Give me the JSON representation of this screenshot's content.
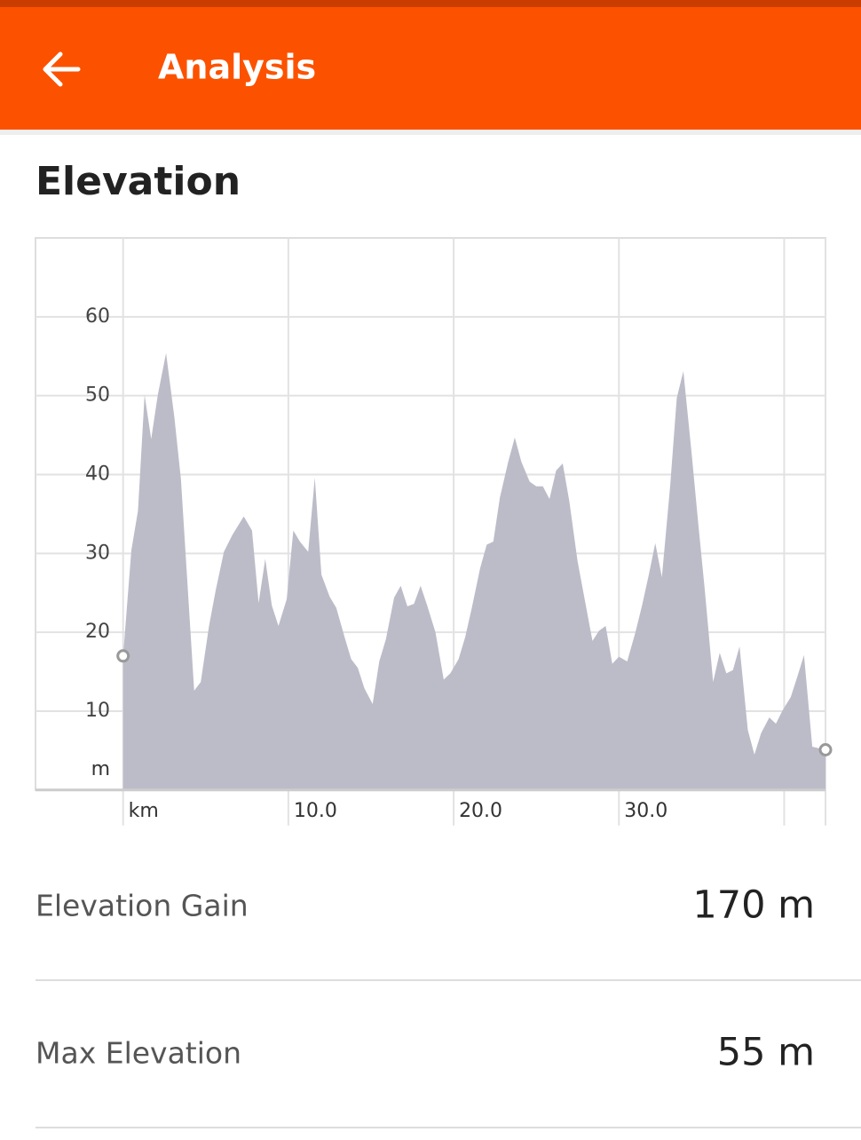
{
  "header": {
    "title": "Analysis"
  },
  "section": {
    "title": "Elevation"
  },
  "chart_data": {
    "type": "area",
    "color": "#bcbcc9",
    "grid": true,
    "x_unit_label": "km",
    "y_unit_label": "m",
    "x": [
      0,
      0.5,
      0.9,
      1.3,
      1.7,
      2.1,
      2.6,
      3.1,
      3.5,
      4.3,
      4.7,
      5.2,
      5.6,
      6.1,
      6.6,
      7.3,
      7.8,
      8.2,
      8.6,
      9.0,
      9.4,
      9.9,
      10.3,
      10.7,
      11.2,
      11.6,
      12.0,
      12.5,
      12.9,
      13.4,
      13.8,
      14.2,
      14.6,
      15.1,
      15.5,
      15.9,
      16.4,
      16.8,
      17.2,
      17.6,
      18.0,
      18.4,
      18.9,
      19.4,
      19.8,
      20.3,
      20.7,
      21.1,
      21.6,
      22.0,
      22.4,
      22.8,
      23.3,
      23.7,
      24.1,
      24.6,
      25.0,
      25.4,
      25.8,
      26.2,
      26.6,
      27.0,
      27.5,
      27.9,
      28.4,
      28.8,
      29.2,
      29.6,
      30.0,
      30.5,
      31.0,
      31.4,
      31.8,
      32.2,
      32.6,
      33.1,
      33.5,
      33.9,
      34.4,
      34.8,
      35.2,
      35.7,
      36.1,
      36.5,
      36.9,
      37.3,
      37.8,
      38.2,
      38.6,
      39.1,
      39.5,
      39.9,
      40.4,
      40.8,
      41.2,
      41.7,
      42.5
    ],
    "values": [
      17,
      30.4,
      35.4,
      50.1,
      44.5,
      50.1,
      55.4,
      47.3,
      39.4,
      12.6,
      13.7,
      20.8,
      25.3,
      30.2,
      32.3,
      34.7,
      32.9,
      23.7,
      29.3,
      23.4,
      20.8,
      24.2,
      32.9,
      31.5,
      30.2,
      39.6,
      27.3,
      24.5,
      23.1,
      19.4,
      16.6,
      15.5,
      12.9,
      10.9,
      16.3,
      19.1,
      24.4,
      25.9,
      23.3,
      23.6,
      25.9,
      23.4,
      20.0,
      14.0,
      14.8,
      16.6,
      19.4,
      23.1,
      28.1,
      31.1,
      31.5,
      37.1,
      41.6,
      44.7,
      41.6,
      39.1,
      38.5,
      38.5,
      36.9,
      40.5,
      41.4,
      36.6,
      29.0,
      24.5,
      18.9,
      20.2,
      20.8,
      16.0,
      16.9,
      16.3,
      20.0,
      23.4,
      27.2,
      31.3,
      27.0,
      38.5,
      49.7,
      53.1,
      42.7,
      33.8,
      25.3,
      13.7,
      17.4,
      14.8,
      15.2,
      18.2,
      7.6,
      4.5,
      7.2,
      9.2,
      8.4,
      10.1,
      11.8,
      14.4,
      17.1,
      5.5,
      5.1
    ],
    "xlim": [
      -5.3,
      42.5
    ],
    "ylim": [
      0,
      70
    ],
    "xticks": [
      {
        "value": 10,
        "label": "10.0"
      },
      {
        "value": 20,
        "label": "20.0"
      },
      {
        "value": 30,
        "label": "30.0"
      }
    ],
    "xgrid": [
      0,
      10,
      20,
      30,
      40,
      42.5
    ],
    "yticks": [
      10,
      20,
      30,
      40,
      50,
      60
    ]
  },
  "stats": [
    {
      "label": "Elevation Gain",
      "value": "170 m"
    },
    {
      "label": "Max Elevation",
      "value": "55 m"
    }
  ]
}
